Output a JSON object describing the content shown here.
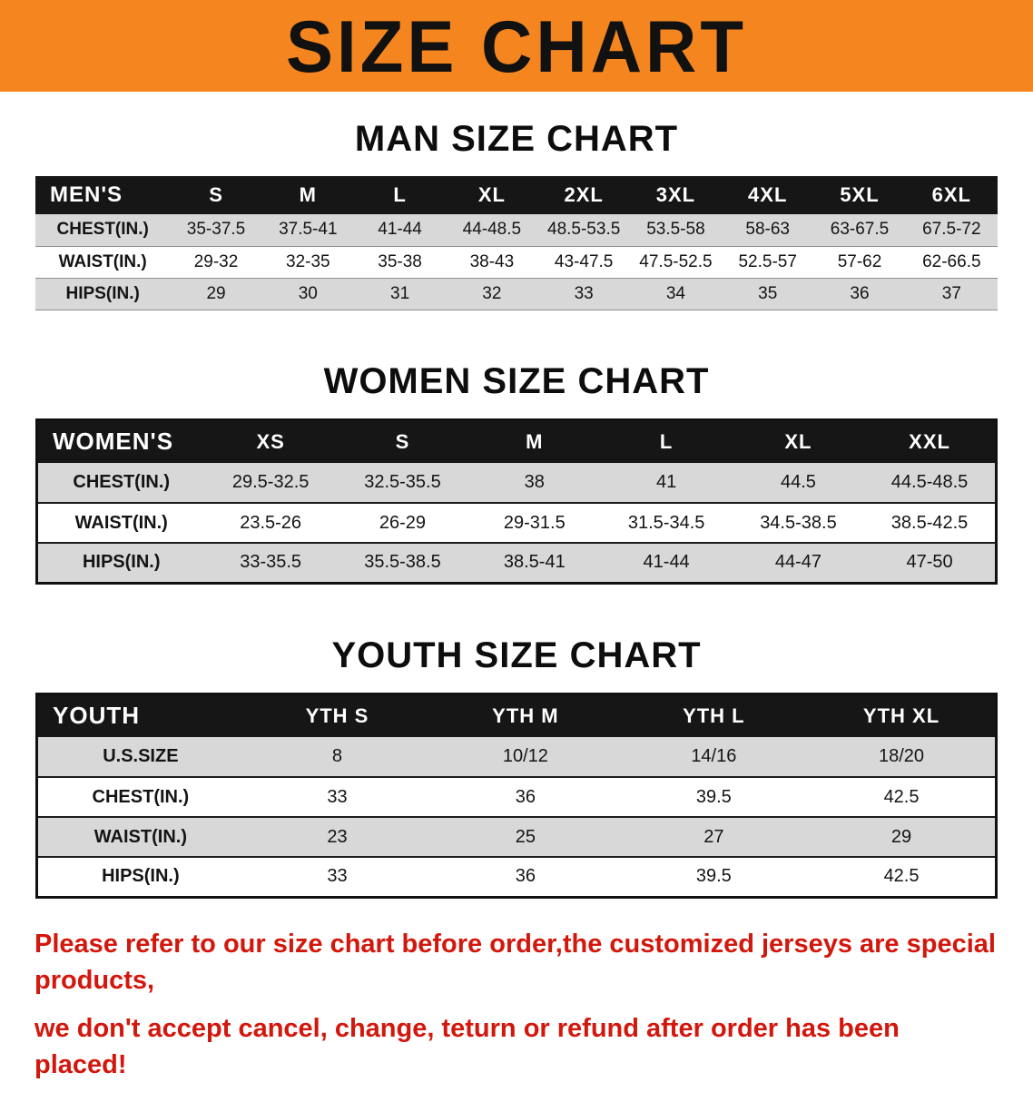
{
  "banner": {
    "title": "SIZE CHART"
  },
  "colors": {
    "banner_bg": "#f5861f",
    "table_header_bg": "#161616",
    "row_alt_bg": "#d8d8d8",
    "disclaimer_red": "#d3170c"
  },
  "sections": [
    {
      "heading": "MAN SIZE CHART",
      "table": {
        "header": [
          "MEN'S",
          "S",
          "M",
          "L",
          "XL",
          "2XL",
          "3XL",
          "4XL",
          "5XL",
          "6XL"
        ],
        "rows": [
          [
            "CHEST(IN.)",
            "35-37.5",
            "37.5-41",
            "41-44",
            "44-48.5",
            "48.5-53.5",
            "53.5-58",
            "58-63",
            "63-67.5",
            "67.5-72"
          ],
          [
            "WAIST(IN.)",
            "29-32",
            "32-35",
            "35-38",
            "38-43",
            "43-47.5",
            "47.5-52.5",
            "52.5-57",
            "57-62",
            "62-66.5"
          ],
          [
            "HIPS(IN.)",
            "29",
            "30",
            "31",
            "32",
            "33",
            "34",
            "35",
            "36",
            "37"
          ]
        ]
      }
    },
    {
      "heading": "WOMEN SIZE CHART",
      "table": {
        "header": [
          "WOMEN'S",
          "XS",
          "S",
          "M",
          "L",
          "XL",
          "XXL"
        ],
        "rows": [
          [
            "CHEST(IN.)",
            "29.5-32.5",
            "32.5-35.5",
            "38",
            "41",
            "44.5",
            "44.5-48.5"
          ],
          [
            "WAIST(IN.)",
            "23.5-26",
            "26-29",
            "29-31.5",
            "31.5-34.5",
            "34.5-38.5",
            "38.5-42.5"
          ],
          [
            "HIPS(IN.)",
            "33-35.5",
            "35.5-38.5",
            "38.5-41",
            "41-44",
            "44-47",
            "47-50"
          ]
        ]
      }
    },
    {
      "heading": "YOUTH SIZE CHART",
      "table": {
        "header": [
          "YOUTH",
          "YTH S",
          "YTH M",
          "YTH L",
          "YTH XL"
        ],
        "rows": [
          [
            "U.S.SIZE",
            "8",
            "10/12",
            "14/16",
            "18/20"
          ],
          [
            "CHEST(IN.)",
            "33",
            "36",
            "39.5",
            "42.5"
          ],
          [
            "WAIST(IN.)",
            "23",
            "25",
            "27",
            "29"
          ],
          [
            "HIPS(IN.)",
            "33",
            "36",
            "39.5",
            "42.5"
          ]
        ]
      }
    }
  ],
  "disclaimer": {
    "line1": "Please refer to our size chart before order,the customized jerseys are special products,",
    "line2": "we don't accept cancel, change, teturn or refund after order has been placed!"
  }
}
